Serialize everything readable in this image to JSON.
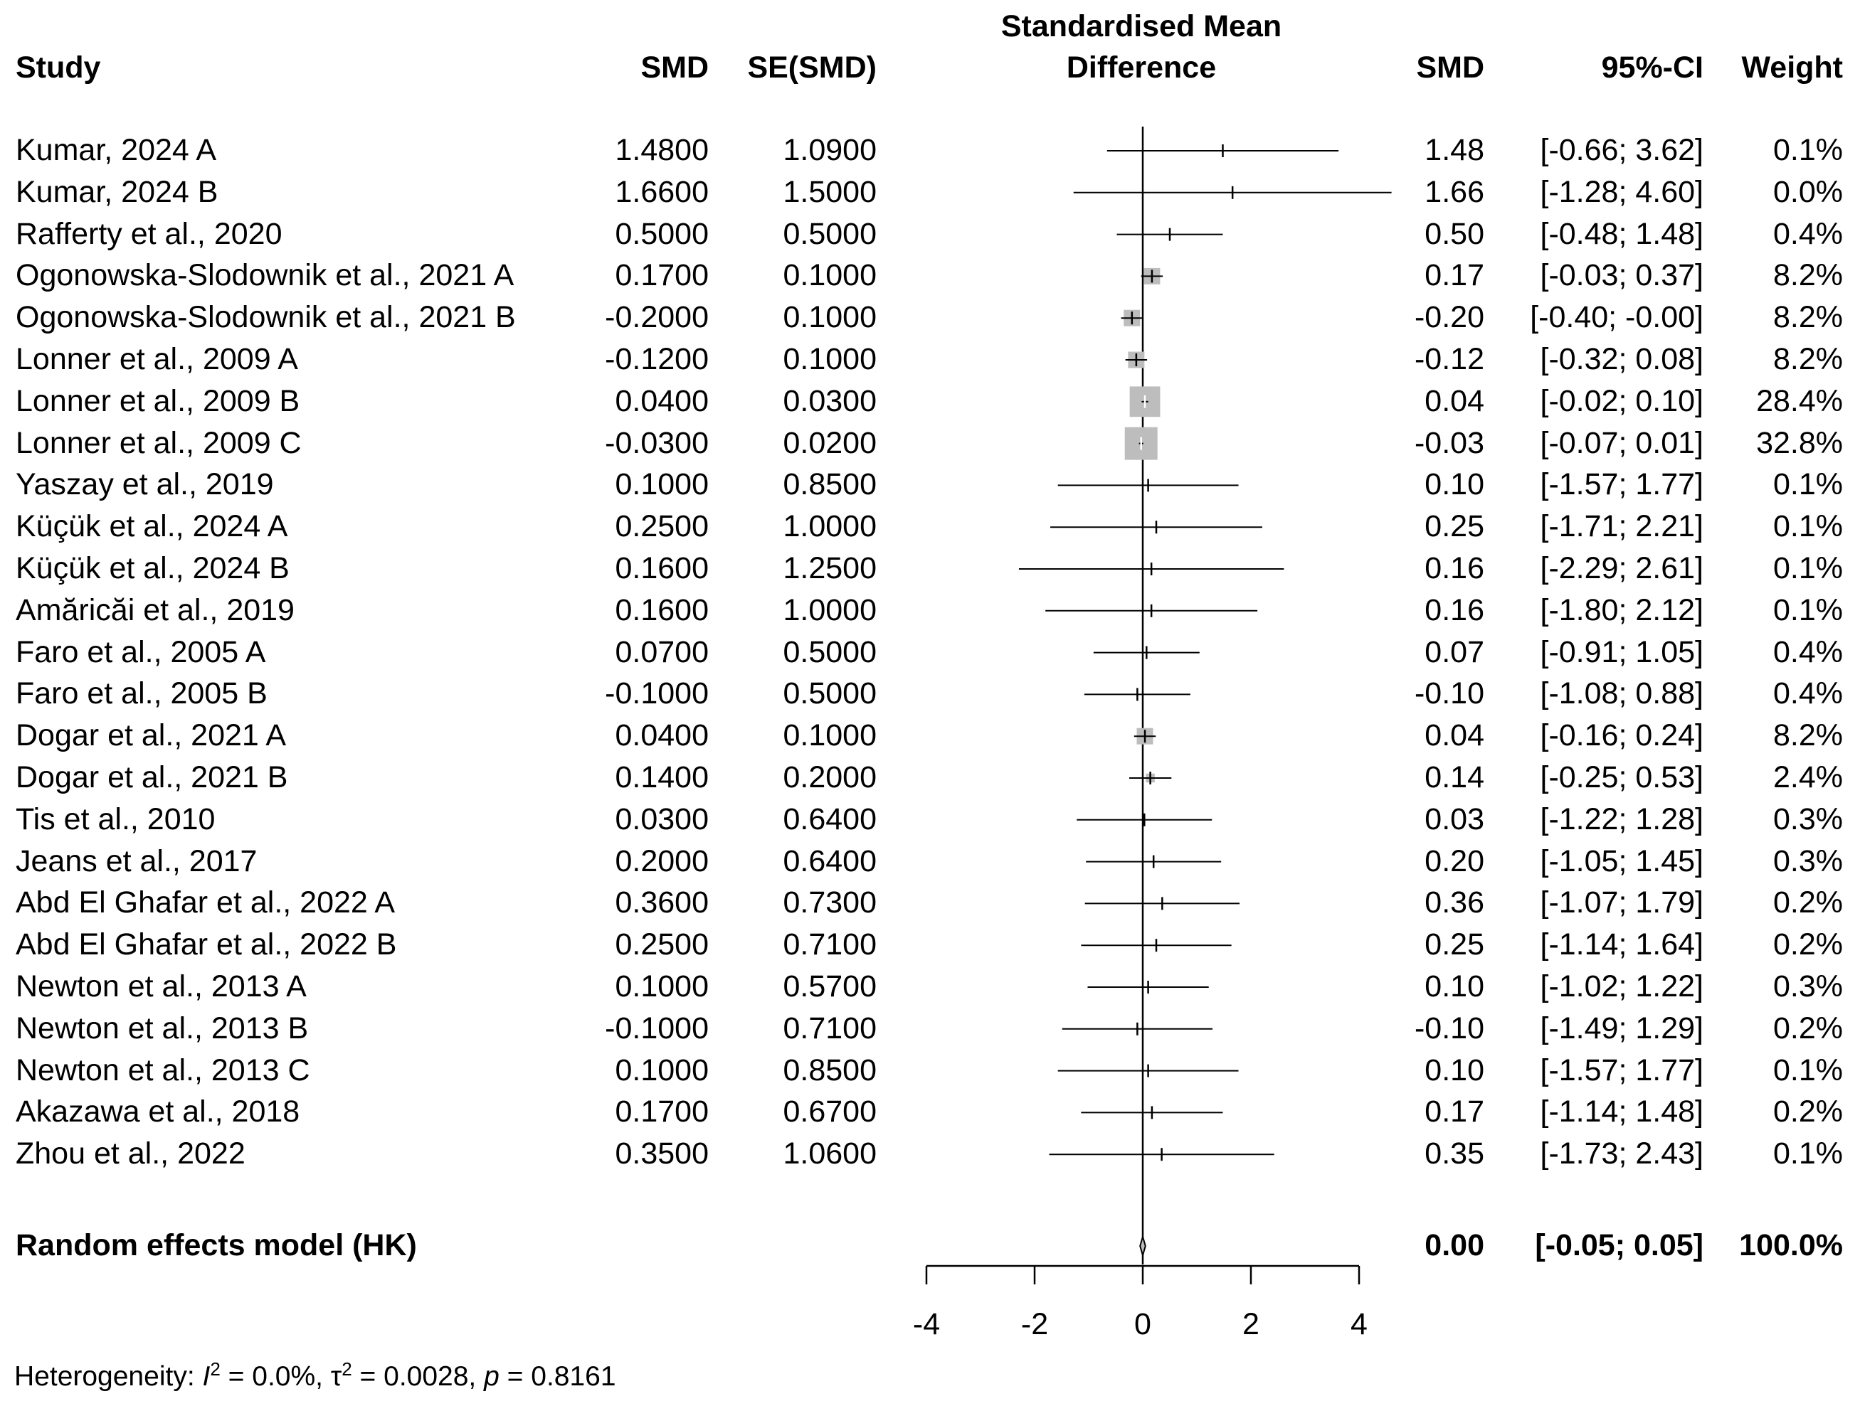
{
  "chart_data": {
    "type": "forest",
    "title": "Standardised Mean Difference",
    "title_lines": [
      "Standardised Mean",
      "Difference"
    ],
    "columns": {
      "study": "Study",
      "smd": "SMD",
      "se": "SE(SMD)",
      "smd_right": "SMD",
      "ci": "95%-CI",
      "weight": "Weight"
    },
    "xlim": [
      -4,
      4
    ],
    "xticks": [
      -4,
      -2,
      0,
      2,
      4
    ],
    "xtick_labels": [
      "-4",
      "-2",
      "0",
      "2",
      "4"
    ],
    "studies": [
      {
        "name": "Kumar, 2024 A",
        "smd": 1.48,
        "se": 1.09,
        "lower": -0.66,
        "upper": 3.62,
        "weight": 0.1,
        "smd_text": "1.4800",
        "se_text": "1.0900",
        "est_text": "1.48",
        "ci_text": "[-0.66;  3.62]",
        "weight_text": "0.1%"
      },
      {
        "name": "Kumar, 2024 B",
        "smd": 1.66,
        "se": 1.5,
        "lower": -1.28,
        "upper": 4.6,
        "weight": 0.0,
        "smd_text": "1.6600",
        "se_text": "1.5000",
        "est_text": "1.66",
        "ci_text": "[-1.28;  4.60]",
        "weight_text": "0.0%"
      },
      {
        "name": "Rafferty et al., 2020",
        "smd": 0.5,
        "se": 0.5,
        "lower": -0.48,
        "upper": 1.48,
        "weight": 0.4,
        "smd_text": "0.5000",
        "se_text": "0.5000",
        "est_text": "0.50",
        "ci_text": "[-0.48;  1.48]",
        "weight_text": "0.4%"
      },
      {
        "name": "Ogonowska-Slodownik et al., 2021 A",
        "smd": 0.17,
        "se": 0.1,
        "lower": -0.03,
        "upper": 0.37,
        "weight": 8.2,
        "smd_text": "0.1700",
        "se_text": "0.1000",
        "est_text": "0.17",
        "ci_text": "[-0.03;  0.37]",
        "weight_text": "8.2%"
      },
      {
        "name": "Ogonowska-Slodownik et al., 2021 B",
        "smd": -0.2,
        "se": 0.1,
        "lower": -0.4,
        "upper": -0.0,
        "weight": 8.2,
        "smd_text": "-0.2000",
        "se_text": "0.1000",
        "est_text": "-0.20",
        "ci_text": "[-0.40; -0.00]",
        "weight_text": "8.2%"
      },
      {
        "name": "Lonner et al., 2009 A",
        "smd": -0.12,
        "se": 0.1,
        "lower": -0.32,
        "upper": 0.08,
        "weight": 8.2,
        "smd_text": "-0.1200",
        "se_text": "0.1000",
        "est_text": "-0.12",
        "ci_text": "[-0.32;  0.08]",
        "weight_text": "8.2%"
      },
      {
        "name": "Lonner et al., 2009 B",
        "smd": 0.04,
        "se": 0.03,
        "lower": -0.02,
        "upper": 0.1,
        "weight": 28.4,
        "smd_text": "0.0400",
        "se_text": "0.0300",
        "est_text": "0.04",
        "ci_text": "[-0.02;  0.10]",
        "weight_text": "28.4%"
      },
      {
        "name": "Lonner et al., 2009 C",
        "smd": -0.03,
        "se": 0.02,
        "lower": -0.07,
        "upper": 0.01,
        "weight": 32.8,
        "smd_text": "-0.0300",
        "se_text": "0.0200",
        "est_text": "-0.03",
        "ci_text": "[-0.07;  0.01]",
        "weight_text": "32.8%"
      },
      {
        "name": "Yaszay et al., 2019",
        "smd": 0.1,
        "se": 0.85,
        "lower": -1.57,
        "upper": 1.77,
        "weight": 0.1,
        "smd_text": "0.1000",
        "se_text": "0.8500",
        "est_text": "0.10",
        "ci_text": "[-1.57;  1.77]",
        "weight_text": "0.1%"
      },
      {
        "name": "Küçük et al., 2024 A",
        "smd": 0.25,
        "se": 1.0,
        "lower": -1.71,
        "upper": 2.21,
        "weight": 0.1,
        "smd_text": "0.2500",
        "se_text": "1.0000",
        "est_text": "0.25",
        "ci_text": "[-1.71;  2.21]",
        "weight_text": "0.1%"
      },
      {
        "name": "Küçük et al., 2024 B",
        "smd": 0.16,
        "se": 1.25,
        "lower": -2.29,
        "upper": 2.61,
        "weight": 0.1,
        "smd_text": "0.1600",
        "se_text": "1.2500",
        "est_text": "0.16",
        "ci_text": "[-2.29;  2.61]",
        "weight_text": "0.1%"
      },
      {
        "name": "Amăricăi et al., 2019",
        "smd": 0.16,
        "se": 1.0,
        "lower": -1.8,
        "upper": 2.12,
        "weight": 0.1,
        "smd_text": "0.1600",
        "se_text": "1.0000",
        "est_text": "0.16",
        "ci_text": "[-1.80;  2.12]",
        "weight_text": "0.1%"
      },
      {
        "name": "Faro et al., 2005 A",
        "smd": 0.07,
        "se": 0.5,
        "lower": -0.91,
        "upper": 1.05,
        "weight": 0.4,
        "smd_text": "0.0700",
        "se_text": "0.5000",
        "est_text": "0.07",
        "ci_text": "[-0.91;  1.05]",
        "weight_text": "0.4%"
      },
      {
        "name": "Faro et al., 2005 B",
        "smd": -0.1,
        "se": 0.5,
        "lower": -1.08,
        "upper": 0.88,
        "weight": 0.4,
        "smd_text": "-0.1000",
        "se_text": "0.5000",
        "est_text": "-0.10",
        "ci_text": "[-1.08;  0.88]",
        "weight_text": "0.4%"
      },
      {
        "name": "Dogar et al., 2021 A",
        "smd": 0.04,
        "se": 0.1,
        "lower": -0.16,
        "upper": 0.24,
        "weight": 8.2,
        "smd_text": "0.0400",
        "se_text": "0.1000",
        "est_text": "0.04",
        "ci_text": "[-0.16;  0.24]",
        "weight_text": "8.2%"
      },
      {
        "name": "Dogar et al., 2021 B",
        "smd": 0.14,
        "se": 0.2,
        "lower": -0.25,
        "upper": 0.53,
        "weight": 2.4,
        "smd_text": "0.1400",
        "se_text": "0.2000",
        "est_text": "0.14",
        "ci_text": "[-0.25;  0.53]",
        "weight_text": "2.4%"
      },
      {
        "name": "Tis et al., 2010",
        "smd": 0.03,
        "se": 0.64,
        "lower": -1.22,
        "upper": 1.28,
        "weight": 0.3,
        "smd_text": "0.0300",
        "se_text": "0.6400",
        "est_text": "0.03",
        "ci_text": "[-1.22;  1.28]",
        "weight_text": "0.3%"
      },
      {
        "name": "Jeans et al., 2017",
        "smd": 0.2,
        "se": 0.64,
        "lower": -1.05,
        "upper": 1.45,
        "weight": 0.3,
        "smd_text": "0.2000",
        "se_text": "0.6400",
        "est_text": "0.20",
        "ci_text": "[-1.05;  1.45]",
        "weight_text": "0.3%"
      },
      {
        "name": "Abd El Ghafar et al., 2022 A",
        "smd": 0.36,
        "se": 0.73,
        "lower": -1.07,
        "upper": 1.79,
        "weight": 0.2,
        "smd_text": "0.3600",
        "se_text": "0.7300",
        "est_text": "0.36",
        "ci_text": "[-1.07;  1.79]",
        "weight_text": "0.2%"
      },
      {
        "name": "Abd El Ghafar et al., 2022 B",
        "smd": 0.25,
        "se": 0.71,
        "lower": -1.14,
        "upper": 1.64,
        "weight": 0.2,
        "smd_text": "0.2500",
        "se_text": "0.7100",
        "est_text": "0.25",
        "ci_text": "[-1.14;  1.64]",
        "weight_text": "0.2%"
      },
      {
        "name": "Newton et al., 2013 A",
        "smd": 0.1,
        "se": 0.57,
        "lower": -1.02,
        "upper": 1.22,
        "weight": 0.3,
        "smd_text": "0.1000",
        "se_text": "0.5700",
        "est_text": "0.10",
        "ci_text": "[-1.02;  1.22]",
        "weight_text": "0.3%"
      },
      {
        "name": "Newton et al., 2013 B",
        "smd": -0.1,
        "se": 0.71,
        "lower": -1.49,
        "upper": 1.29,
        "weight": 0.2,
        "smd_text": "-0.1000",
        "se_text": "0.7100",
        "est_text": "-0.10",
        "ci_text": "[-1.49;  1.29]",
        "weight_text": "0.2%"
      },
      {
        "name": "Newton et al., 2013 C",
        "smd": 0.1,
        "se": 0.85,
        "lower": -1.57,
        "upper": 1.77,
        "weight": 0.1,
        "smd_text": "0.1000",
        "se_text": "0.8500",
        "est_text": "0.10",
        "ci_text": "[-1.57;  1.77]",
        "weight_text": "0.1%"
      },
      {
        "name": "Akazawa et al., 2018",
        "smd": 0.17,
        "se": 0.67,
        "lower": -1.14,
        "upper": 1.48,
        "weight": 0.2,
        "smd_text": "0.1700",
        "se_text": "0.6700",
        "est_text": "0.17",
        "ci_text": "[-1.14;  1.48]",
        "weight_text": "0.2%"
      },
      {
        "name": "Zhou et al., 2022",
        "smd": 0.35,
        "se": 1.06,
        "lower": -1.73,
        "upper": 2.43,
        "weight": 0.1,
        "smd_text": "0.3500",
        "se_text": "1.0600",
        "est_text": "0.35",
        "ci_text": "[-1.73;  2.43]",
        "weight_text": "0.1%"
      }
    ],
    "pooled": {
      "label": "Random effects model (HK)",
      "smd": 0.0,
      "lower": -0.05,
      "upper": 0.05,
      "weight": 100.0,
      "est_text": "0.00",
      "ci_text": "[-0.05;  0.05]",
      "weight_text": "100.0%"
    },
    "heterogeneity": {
      "prefix": "Heterogeneity: ",
      "i2_symbol": "I",
      "i2_rest": " = 0.0%, ",
      "tau2_symbol": "τ",
      "tau2_rest": " = 0.0028, ",
      "p_symbol": "p",
      "p_rest": " = 0.8161",
      "sup": "2",
      "i2": 0.0,
      "tau2": 0.0028,
      "p": 0.8161
    },
    "colors": {
      "box": "#bdbdbd",
      "line": "#000000",
      "box_tick": "#ffffff"
    }
  }
}
